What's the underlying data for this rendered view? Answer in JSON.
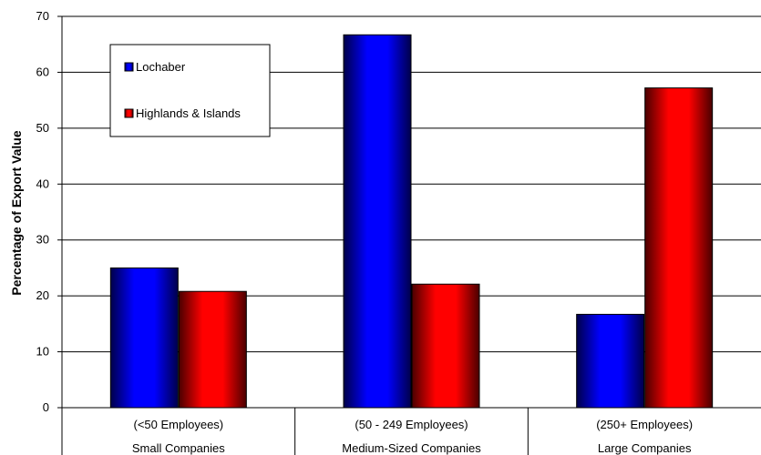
{
  "chart_data": {
    "type": "bar",
    "title": "",
    "ylabel": "Percentage of Export Value",
    "xlabel": "",
    "ylim": [
      0,
      70
    ],
    "yticks": [
      0,
      10,
      20,
      30,
      40,
      50,
      60,
      70
    ],
    "categories": [
      {
        "line1": "(<50 Employees)",
        "line2": "Small Companies"
      },
      {
        "line1": "(50 - 249 Employees)",
        "line2": "Medium-Sized Companies"
      },
      {
        "line1": "(250+ Employees)",
        "line2": "Large Companies"
      }
    ],
    "series": [
      {
        "name": "Lochaber",
        "color": "#0000ff",
        "values": [
          25,
          66.7,
          16.7
        ]
      },
      {
        "name": "Highlands & Islands",
        "color": "#ff0000",
        "values": [
          20.8,
          22.1,
          57.2
        ]
      }
    ],
    "grid": true,
    "legend_position": "top-left"
  }
}
